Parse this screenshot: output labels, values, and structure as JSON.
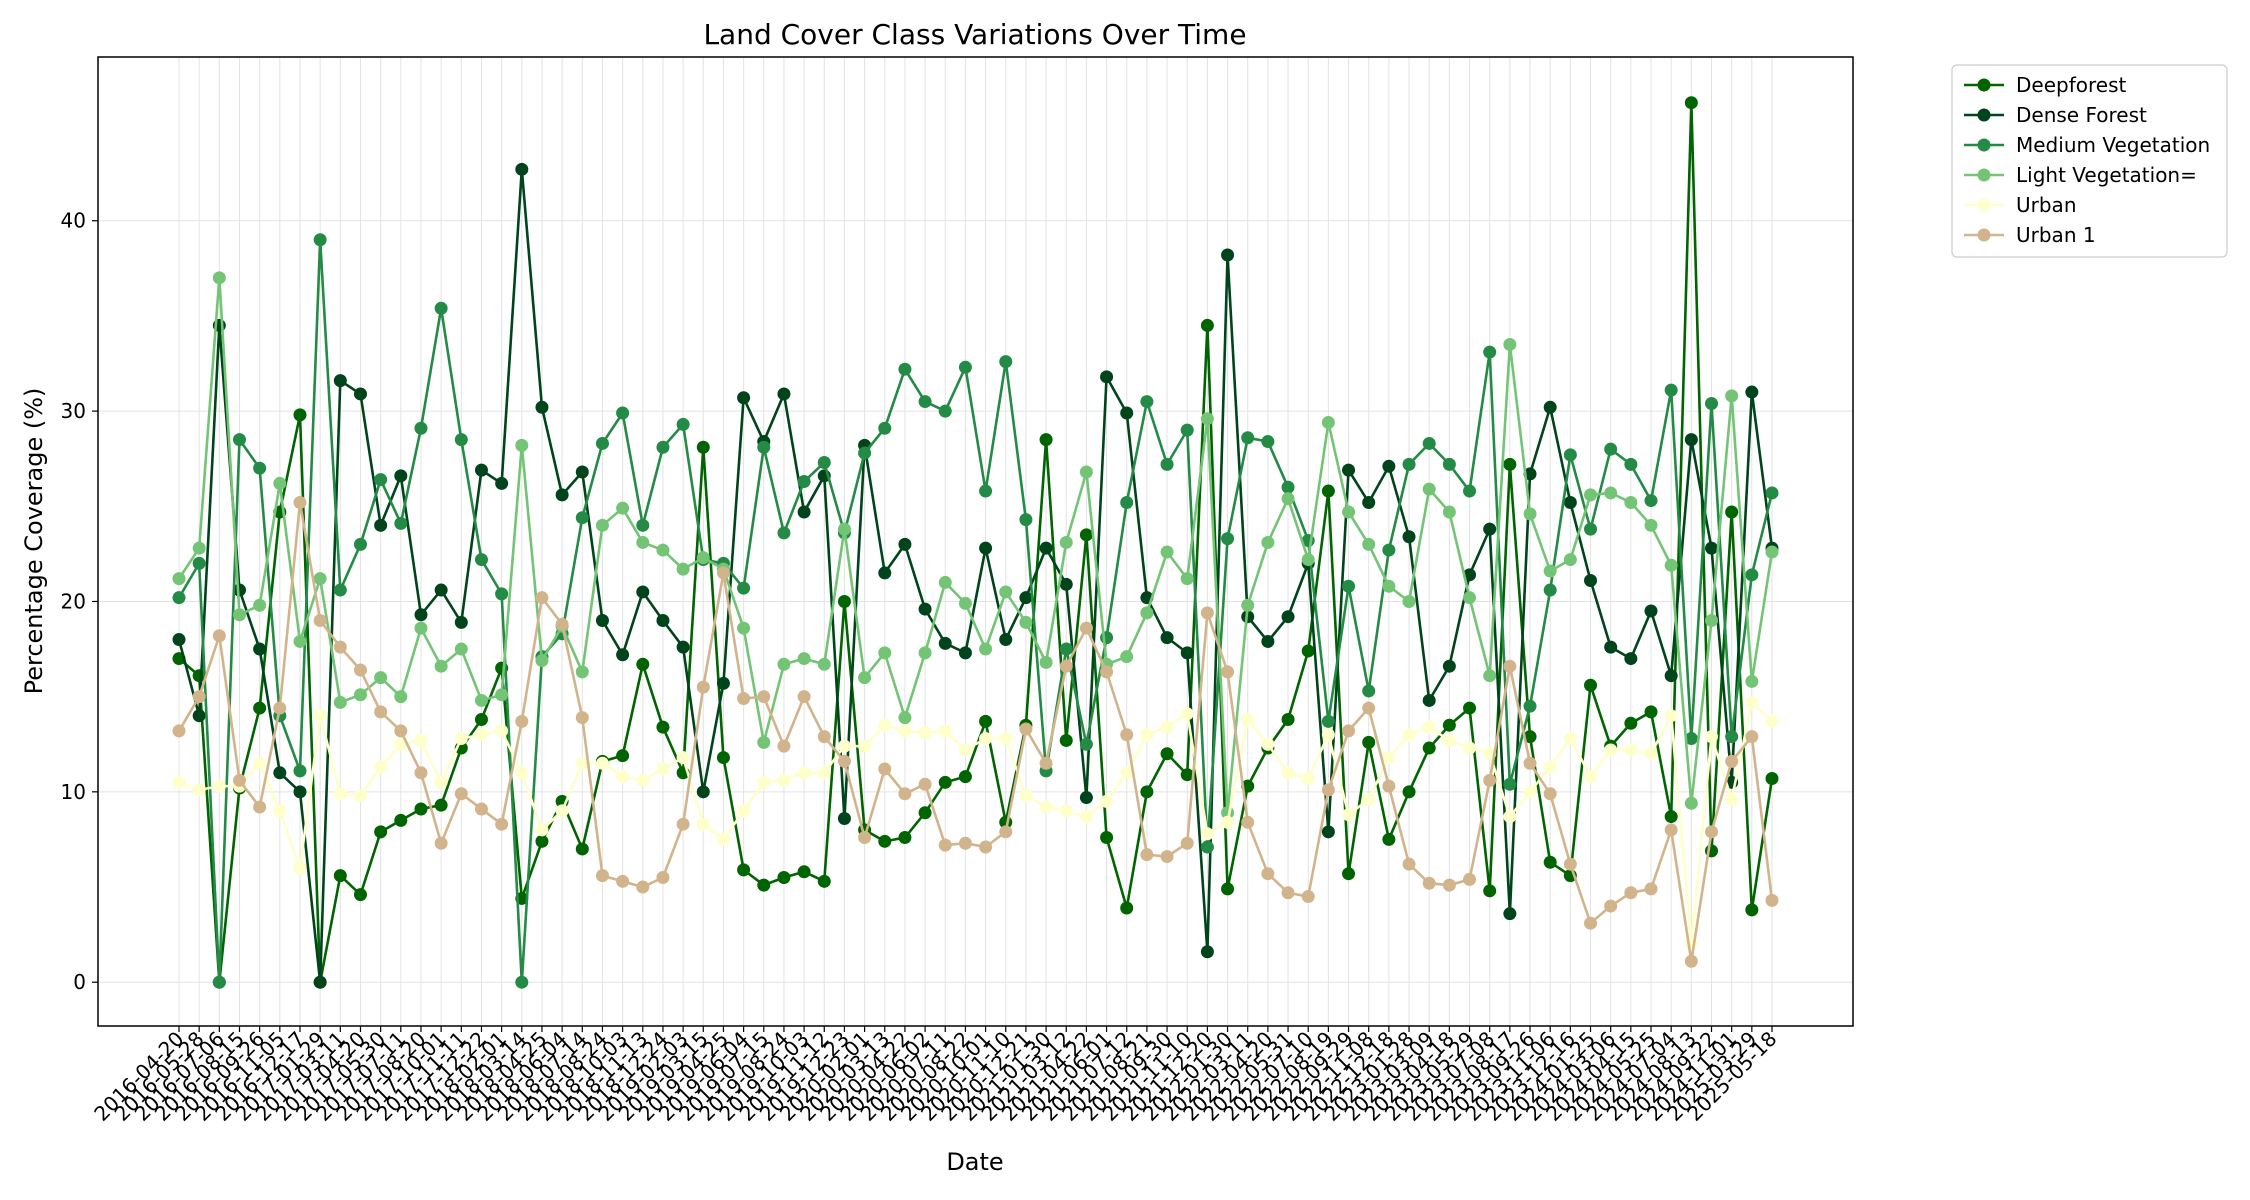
{
  "chart_data": {
    "type": "line",
    "title": "Land Cover Class Variations Over Time",
    "xlabel": "Date",
    "ylabel": "Percentage Coverage (%)",
    "categories": [
      "2016-04-20",
      "2016-05-28",
      "2016-07-06",
      "2016-08-15",
      "2016-09-26",
      "2016-11-05",
      "2016-12-17",
      "2017-01-29",
      "2017-03-11",
      "2017-04-20",
      "2017-05-30",
      "2017-07-11",
      "2017-08-20",
      "2017-10-01",
      "2017-11-11",
      "2017-12-22",
      "2018-02-01",
      "2018-03-14",
      "2018-04-25",
      "2018-06-04",
      "2018-07-14",
      "2018-08-24",
      "2018-10-03",
      "2018-11-13",
      "2018-12-24",
      "2019-02-03",
      "2019-03-15",
      "2019-04-25",
      "2019-06-04",
      "2019-07-15",
      "2019-08-24",
      "2019-10-03",
      "2019-11-12",
      "2019-12-23",
      "2020-02-01",
      "2020-03-13",
      "2020-04-22",
      "2020-06-02",
      "2020-07-11",
      "2020-08-22",
      "2020-10-01",
      "2020-11-10",
      "2020-12-21",
      "2021-01-30",
      "2021-03-12",
      "2021-04-22",
      "2021-06-01",
      "2021-07-12",
      "2021-08-21",
      "2021-09-30",
      "2021-11-10",
      "2021-12-20",
      "2022-01-30",
      "2022-03-11",
      "2022-04-20",
      "2022-05-31",
      "2022-07-10",
      "2022-08-19",
      "2022-09-29",
      "2022-11-08",
      "2022-12-18",
      "2023-01-28",
      "2023-03-09",
      "2023-04-18",
      "2023-05-29",
      "2023-07-08",
      "2023-08-17",
      "2023-09-26",
      "2023-11-06",
      "2023-12-16",
      "2024-01-25",
      "2024-03-06",
      "2024-04-15",
      "2024-05-25",
      "2024-07-04",
      "2024-08-13",
      "2024-09-22",
      "2024-11-01",
      "2025-03-29",
      "2025-05-18"
    ],
    "series": [
      {
        "name": "Deepforest",
        "color": "#006400",
        "values": [
          17,
          16.1,
          0,
          10.2,
          14.4,
          24.7,
          29.8,
          0,
          5.6,
          4.6,
          7.9,
          8.5,
          9.1,
          9.3,
          12.3,
          13.8,
          16.5,
          4.4,
          7.4,
          9.5,
          7,
          11.6,
          11.9,
          16.7,
          13.4,
          11,
          28.1,
          11.8,
          5.9,
          5.1,
          5.5,
          5.8,
          5.3,
          20,
          8,
          7.4,
          7.6,
          8.9,
          10.5,
          10.8,
          13.7,
          8.4,
          13.5,
          28.5,
          12.7,
          23.5,
          7.6,
          3.9,
          10,
          12,
          10.9,
          34.5,
          4.9,
          10.3,
          12.3,
          13.8,
          17.4,
          25.8,
          5.7,
          12.6,
          7.5,
          10,
          12.3,
          13.5,
          14.4,
          4.8,
          27.2,
          12.9,
          6.3,
          5.6,
          15.6,
          12.4,
          13.6,
          14.2,
          8.7,
          46.2,
          6.9,
          24.7,
          3.8,
          10.7
        ]
      },
      {
        "name": "Dense Forest",
        "color": "#00441b",
        "values": [
          18,
          14,
          34.5,
          20.6,
          17.5,
          11,
          10,
          0,
          31.6,
          30.9,
          24,
          26.6,
          19.3,
          20.6,
          18.9,
          26.9,
          26.2,
          42.7,
          30.2,
          25.6,
          26.8,
          19,
          17.2,
          20.5,
          19,
          17.6,
          10,
          15.7,
          30.7,
          28.4,
          30.9,
          24.7,
          26.6,
          8.6,
          28.2,
          21.5,
          23,
          19.6,
          17.8,
          17.3,
          22.8,
          18,
          20.2,
          22.8,
          20.9,
          9.7,
          31.8,
          29.9,
          20.2,
          18.1,
          17.3,
          1.6,
          38.2,
          19.2,
          17.9,
          19.2,
          22,
          7.9,
          26.9,
          25.2,
          27.1,
          23.4,
          14.8,
          16.6,
          21.4,
          23.8,
          3.6,
          26.7,
          30.2,
          25.2,
          21.1,
          17.6,
          17,
          19.5,
          16.1,
          28.5,
          22.8,
          10.5,
          31,
          22.8
        ]
      },
      {
        "name": "Medium Vegetation",
        "color": "#238b45",
        "values": [
          20.2,
          22,
          0,
          28.5,
          27,
          14,
          11.1,
          39,
          20.6,
          23,
          26.4,
          24.1,
          29.1,
          35.4,
          28.5,
          22.2,
          20.4,
          0,
          17.1,
          18.3,
          24.4,
          28.3,
          29.9,
          24,
          28.1,
          29.3,
          22.2,
          22,
          20.7,
          28.1,
          23.6,
          26.3,
          27.3,
          23.6,
          27.8,
          29.1,
          32.2,
          30.5,
          30,
          32.3,
          25.8,
          32.6,
          24.3,
          11.1,
          17.5,
          12.5,
          18.1,
          25.2,
          30.5,
          27.2,
          29,
          7.1,
          23.3,
          28.6,
          28.4,
          26,
          23.2,
          13.7,
          20.8,
          15.3,
          22.7,
          27.2,
          28.3,
          27.2,
          25.8,
          33.1,
          10.4,
          14.5,
          20.6,
          27.7,
          23.8,
          28,
          27.2,
          25.3,
          31.1,
          12.8,
          30.4,
          12.9,
          21.4,
          25.7
        ]
      },
      {
        "name": "Light Vegetation=",
        "color": "#74c476",
        "values": [
          21.2,
          22.8,
          37,
          19.3,
          19.8,
          26.2,
          17.9,
          21.2,
          14.7,
          15.1,
          16,
          15,
          18.6,
          16.6,
          17.5,
          14.8,
          15.1,
          28.2,
          16.9,
          18.7,
          16.3,
          24,
          24.9,
          23.1,
          22.7,
          21.7,
          22.3,
          21.7,
          18.6,
          12.6,
          16.7,
          17,
          16.7,
          23.8,
          16,
          17.3,
          13.9,
          17.3,
          21,
          19.9,
          17.5,
          20.5,
          18.9,
          16.8,
          23.1,
          26.8,
          16.7,
          17.1,
          19.4,
          22.6,
          21.2,
          29.6,
          8.9,
          19.8,
          23.1,
          25.4,
          22.2,
          29.4,
          24.7,
          23,
          20.8,
          20,
          25.9,
          24.7,
          20.2,
          16.1,
          33.5,
          24.6,
          21.6,
          22.2,
          25.6,
          25.7,
          25.2,
          24,
          21.9,
          9.4,
          19,
          30.8,
          15.8,
          22.6
        ]
      },
      {
        "name": "Urban",
        "color": "#ffffcc",
        "values": [
          10.5,
          10.1,
          10.3,
          10.3,
          11.5,
          9,
          6,
          14,
          9.9,
          9.8,
          11.3,
          12.5,
          12.7,
          10.5,
          12.8,
          13,
          13.2,
          11,
          8,
          9,
          11.5,
          11.5,
          10.8,
          10.6,
          11.2,
          11.8,
          8.3,
          7.5,
          9,
          10.5,
          10.6,
          11,
          11,
          12.4,
          12.4,
          13.5,
          13.2,
          13.1,
          13.2,
          12.2,
          12.8,
          12.8,
          9.8,
          9.2,
          9,
          8.7,
          9.5,
          11,
          13,
          13.4,
          14.1,
          7.8,
          8.4,
          13.8,
          12.5,
          11,
          10.7,
          13,
          8.8,
          9.6,
          11.8,
          13,
          13.4,
          12.7,
          12.3,
          12,
          8.7,
          10,
          11.3,
          12.8,
          10.8,
          12.2,
          12.2,
          12,
          14,
          2,
          12.9,
          9.6,
          14.7,
          13.7
        ]
      },
      {
        "name": "Urban 1",
        "color": "#d2b48c",
        "values": [
          13.2,
          15,
          18.2,
          10.6,
          9.2,
          14.4,
          25.2,
          19,
          17.6,
          16.4,
          14.2,
          13.2,
          11,
          7.3,
          9.9,
          9.1,
          8.3,
          13.7,
          20.2,
          18.8,
          13.9,
          5.6,
          5.3,
          5,
          5.5,
          8.3,
          15.5,
          21.5,
          14.9,
          15,
          12.4,
          15,
          12.9,
          11.6,
          7.6,
          11.2,
          9.9,
          10.4,
          7.2,
          7.3,
          7.1,
          7.9,
          13.3,
          11.5,
          16.6,
          18.6,
          16.3,
          13,
          6.7,
          6.6,
          7.3,
          19.4,
          16.3,
          8.4,
          5.7,
          4.7,
          4.5,
          10.1,
          13.2,
          14.4,
          10.3,
          6.2,
          5.2,
          5.1,
          5.4,
          10.6,
          16.6,
          11.5,
          9.9,
          6.2,
          3.1,
          4,
          4.7,
          4.9,
          8,
          1.1,
          7.9,
          11.6,
          12.9,
          4.3
        ]
      }
    ],
    "ylim": [
      -2.3,
      48.6
    ],
    "yticks": [
      0,
      10,
      20,
      30,
      40
    ],
    "grid": true,
    "legend": "outside upper right"
  }
}
